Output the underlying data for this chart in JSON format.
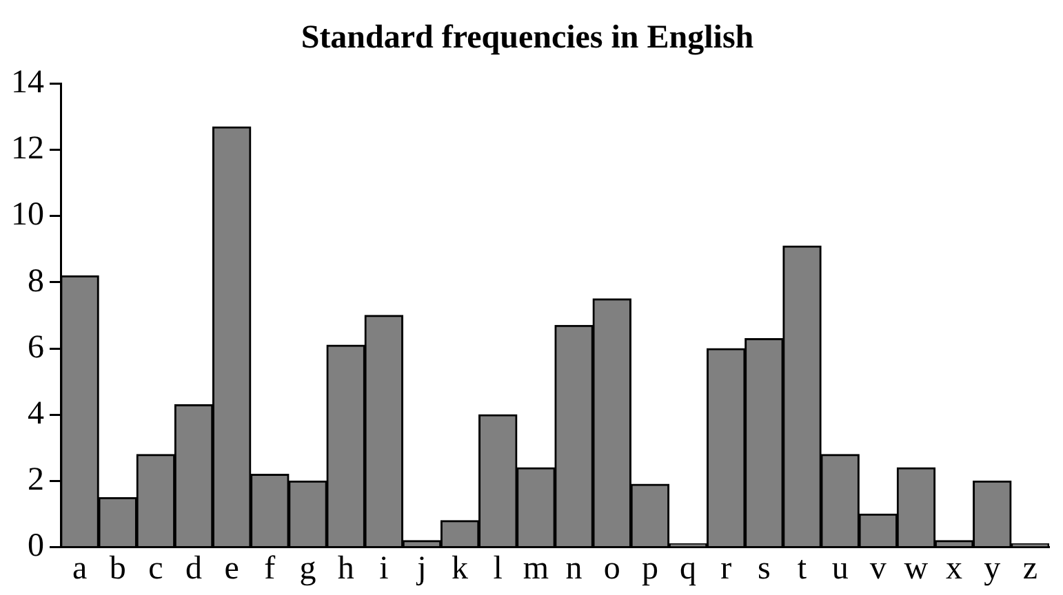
{
  "chart_data": {
    "type": "bar",
    "title": "Standard frequencies in English",
    "categories": [
      "a",
      "b",
      "c",
      "d",
      "e",
      "f",
      "g",
      "h",
      "i",
      "j",
      "k",
      "l",
      "m",
      "n",
      "o",
      "p",
      "q",
      "r",
      "s",
      "t",
      "u",
      "v",
      "w",
      "x",
      "y",
      "z"
    ],
    "values": [
      8.2,
      1.5,
      2.8,
      4.3,
      12.7,
      2.2,
      2.0,
      6.1,
      7.0,
      0.2,
      0.8,
      4.0,
      2.4,
      6.7,
      7.5,
      1.9,
      0.1,
      6.0,
      6.3,
      9.1,
      2.8,
      1.0,
      2.4,
      0.2,
      2.0,
      0.1
    ],
    "color": "#808080",
    "ylim": [
      0,
      14
    ],
    "yticks": [
      0,
      2,
      4,
      6,
      8,
      10,
      12,
      14
    ],
    "grid": false,
    "legend": false
  }
}
